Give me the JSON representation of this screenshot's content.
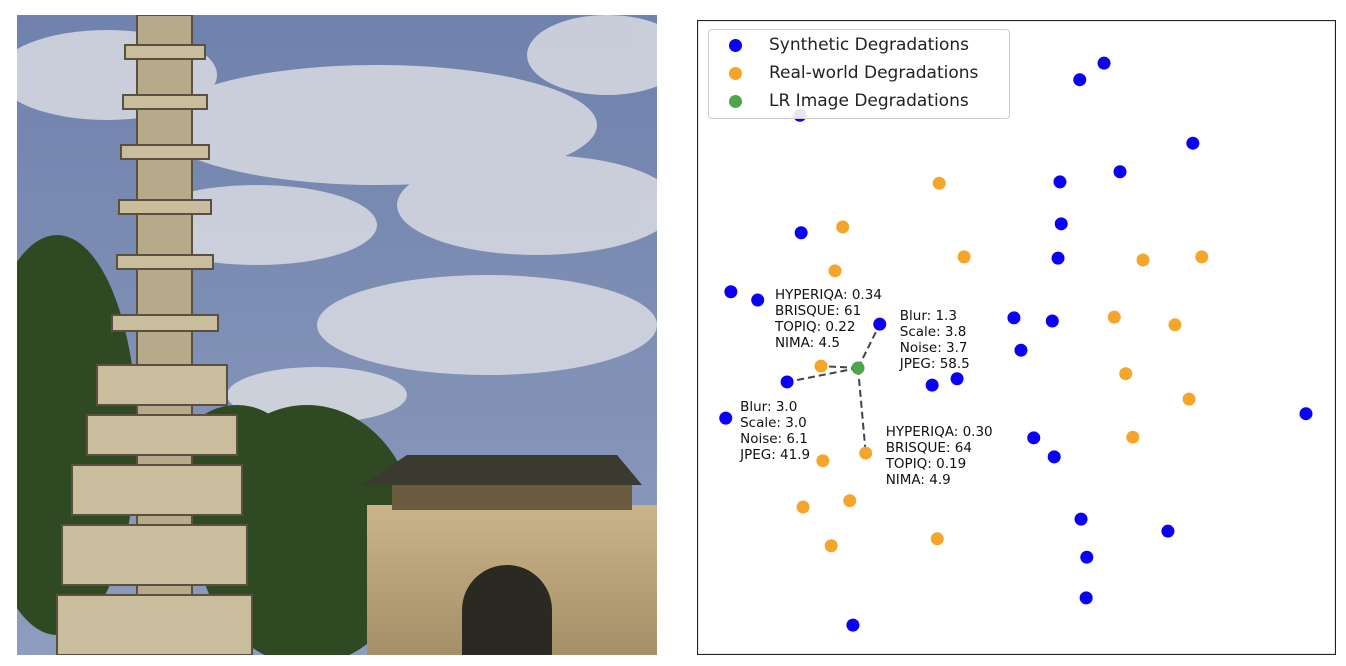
{
  "chart_data": {
    "type": "scatter",
    "title": "",
    "xlabel": "",
    "ylabel": "",
    "axes_ticks": false,
    "grid": false,
    "xlim": [
      0,
      100
    ],
    "ylim": [
      0,
      100
    ],
    "legend": {
      "placement": "top-left",
      "entries": [
        "Synthetic Degradations",
        "Real-world Degradations",
        "LR Image Degradations"
      ]
    },
    "series": [
      {
        "name": "Synthetic Degradations",
        "color": "#0a00f5",
        "points": [
          [
            63.7,
            93.2
          ],
          [
            59.9,
            90.6
          ],
          [
            77.6,
            80.6
          ],
          [
            56.8,
            74.5
          ],
          [
            66.2,
            76.1
          ],
          [
            57.0,
            67.9
          ],
          [
            16.3,
            66.5
          ],
          [
            56.5,
            62.5
          ],
          [
            5.3,
            57.2
          ],
          [
            9.5,
            55.9
          ],
          [
            28.6,
            52.1
          ],
          [
            49.6,
            53.1
          ],
          [
            55.6,
            52.6
          ],
          [
            50.7,
            48.0
          ],
          [
            14.1,
            43.0
          ],
          [
            36.8,
            42.5
          ],
          [
            40.7,
            43.5
          ],
          [
            4.5,
            37.3
          ],
          [
            95.3,
            38.0
          ],
          [
            52.7,
            34.2
          ],
          [
            55.9,
            31.2
          ],
          [
            60.1,
            21.4
          ],
          [
            73.7,
            19.5
          ],
          [
            61.0,
            15.4
          ],
          [
            60.9,
            9.0
          ],
          [
            24.4,
            4.7
          ],
          [
            16.1,
            85.0
          ]
        ]
      },
      {
        "name": "Real-world Degradations",
        "color": "#f5a52a",
        "points": [
          [
            37.9,
            74.3
          ],
          [
            22.8,
            67.4
          ],
          [
            41.8,
            62.7
          ],
          [
            21.6,
            60.5
          ],
          [
            69.8,
            62.2
          ],
          [
            79.0,
            62.7
          ],
          [
            65.3,
            53.2
          ],
          [
            74.8,
            52.0
          ],
          [
            19.4,
            45.5
          ],
          [
            67.1,
            44.3
          ],
          [
            77.0,
            40.3
          ],
          [
            68.2,
            34.3
          ],
          [
            19.7,
            30.6
          ],
          [
            26.4,
            31.8
          ],
          [
            23.9,
            24.3
          ],
          [
            16.6,
            23.3
          ],
          [
            37.6,
            18.3
          ],
          [
            21.0,
            17.2
          ]
        ]
      },
      {
        "name": "LR Image Degradations",
        "color": "#4ca64c",
        "points": [
          [
            25.2,
            45.2
          ]
        ]
      }
    ],
    "links": [
      {
        "series": 0,
        "point": 10
      },
      {
        "series": 0,
        "point": 14
      },
      {
        "series": 1,
        "point": 8
      },
      {
        "series": 1,
        "point": 13
      }
    ],
    "annotations": [
      {
        "series": 1,
        "point": 8,
        "lines": [
          "HYPERIQA: 0.34",
          "BRISQUE: 61",
          "TOPIQ: 0.22",
          "NIMA: 4.5"
        ]
      },
      {
        "series": 0,
        "point": 10,
        "lines": [
          "Blur: 1.3",
          "Scale: 3.8",
          "Noise: 3.7",
          "JPEG: 58.5"
        ]
      },
      {
        "series": 0,
        "point": 14,
        "lines": [
          "Blur: 3.0",
          "Scale: 3.0",
          "Noise: 6.1",
          "JPEG: 41.9"
        ]
      },
      {
        "series": 1,
        "point": 13,
        "lines": [
          "HYPERIQA: 0.30",
          "BRISQUE: 64",
          "TOPIQ: 0.19",
          "NIMA: 4.9"
        ]
      }
    ]
  }
}
